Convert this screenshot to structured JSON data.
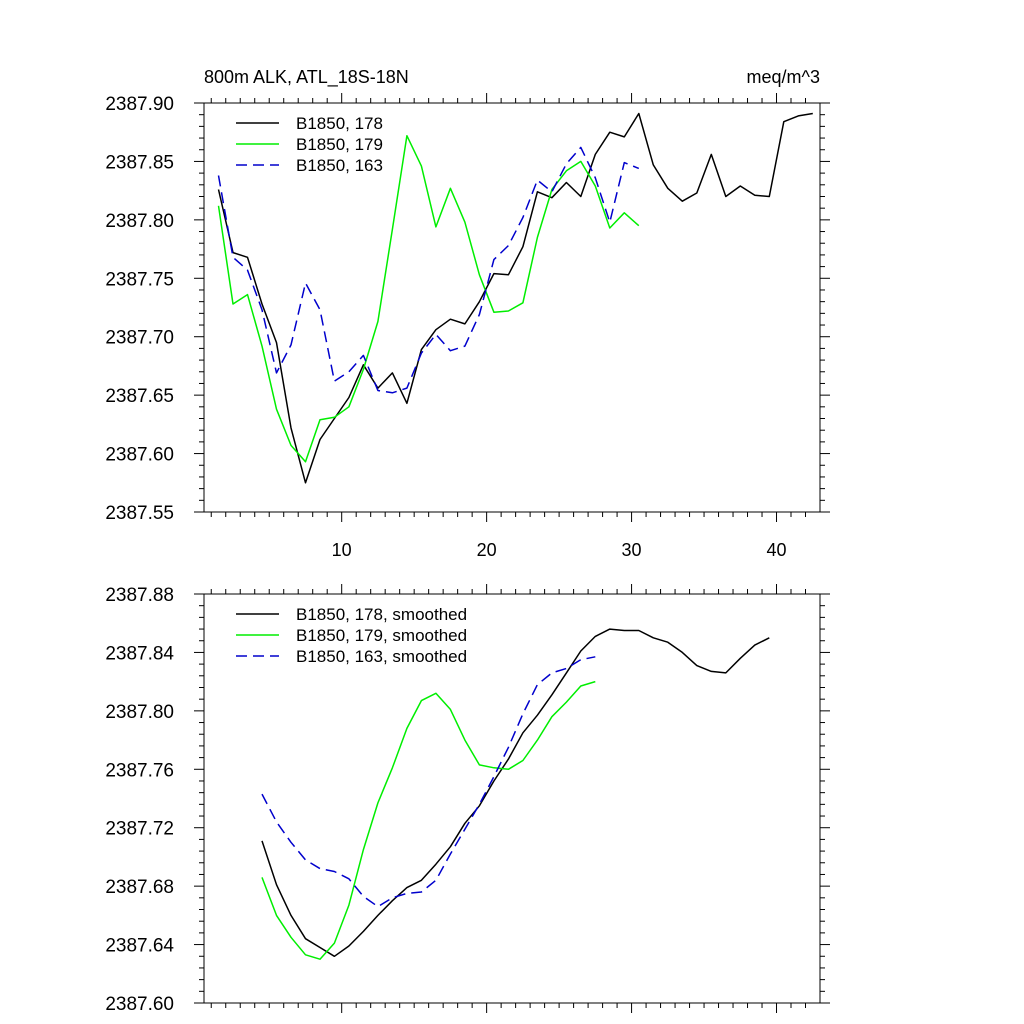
{
  "figure": {
    "title_left": "800m ALK, ATL_18S-18N",
    "title_right": "meq/m^3"
  },
  "chart_data": [
    {
      "type": "line",
      "title": "800m ALK, ATL_18S-18N",
      "units": "meq/m^3",
      "xlim": [
        0.5,
        43.0
      ],
      "ylim": [
        2387.55,
        2387.9
      ],
      "x_ticks": [
        10,
        20,
        30,
        40
      ],
      "x_tick_labels": [
        "10",
        "20",
        "30",
        "40"
      ],
      "y_ticks": [
        2387.55,
        2387.6,
        2387.65,
        2387.7,
        2387.75,
        2387.8,
        2387.85,
        2387.9
      ],
      "y_tick_labels": [
        "2387.55",
        "2387.60",
        "2387.65",
        "2387.70",
        "2387.75",
        "2387.80",
        "2387.85",
        "2387.90"
      ],
      "legend": "top-left",
      "series": [
        {
          "name": "B1850, 178",
          "color": "#000000",
          "dash": "solid",
          "x": [
            1.5,
            2.5,
            3.5,
            4.5,
            5.5,
            6.5,
            7.5,
            8.5,
            9.5,
            10.5,
            11.5,
            12.5,
            13.5,
            14.5,
            15.5,
            16.5,
            17.5,
            18.5,
            19.5,
            20.5,
            21.5,
            22.5,
            23.5,
            24.5,
            25.5,
            26.5,
            27.5,
            28.5,
            29.5,
            30.5,
            31.5,
            32.5,
            33.5,
            34.5,
            35.5,
            36.5,
            37.5,
            38.5,
            39.5,
            40.5,
            41.5,
            42.5
          ],
          "values": [
            2387.826,
            2387.772,
            2387.768,
            2387.728,
            2387.695,
            2387.622,
            2387.575,
            2387.612,
            2387.63,
            2387.648,
            2387.676,
            2387.656,
            2387.669,
            2387.643,
            2387.689,
            2387.706,
            2387.715,
            2387.711,
            2387.73,
            2387.754,
            2387.753,
            2387.777,
            2387.824,
            2387.819,
            2387.832,
            2387.82,
            2387.856,
            2387.875,
            2387.871,
            2387.891,
            2387.847,
            2387.827,
            2387.816,
            2387.823,
            2387.856,
            2387.82,
            2387.829,
            2387.821,
            2387.82,
            2387.884,
            2387.889,
            2387.891
          ]
        },
        {
          "name": "B1850, 179",
          "color": "#00ee00",
          "dash": "solid",
          "x": [
            1.5,
            2.5,
            3.5,
            4.5,
            5.5,
            6.5,
            7.5,
            8.5,
            9.5,
            10.5,
            11.5,
            12.5,
            13.5,
            14.5,
            15.5,
            16.5,
            17.5,
            18.5,
            19.5,
            20.5,
            21.5,
            22.5,
            23.5,
            24.5,
            25.5,
            26.5,
            27.5,
            28.5,
            29.5,
            30.5
          ],
          "values": [
            2387.812,
            2387.728,
            2387.736,
            2387.692,
            2387.638,
            2387.607,
            2387.593,
            2387.629,
            2387.631,
            2387.64,
            2387.672,
            2387.713,
            2387.792,
            2387.872,
            2387.846,
            2387.794,
            2387.827,
            2387.798,
            2387.753,
            2387.721,
            2387.722,
            2387.729,
            2387.785,
            2387.826,
            2387.842,
            2387.85,
            2387.829,
            2387.793,
            2387.806,
            2387.795
          ]
        },
        {
          "name": "B1850, 163",
          "color": "#0000cc",
          "dash": "dashed",
          "x": [
            1.5,
            2.5,
            3.5,
            4.5,
            5.5,
            6.5,
            7.5,
            8.5,
            9.5,
            10.5,
            11.5,
            12.5,
            13.5,
            14.5,
            15.5,
            16.5,
            17.5,
            18.5,
            19.5,
            20.5,
            21.5,
            22.5,
            23.5,
            24.5,
            25.5,
            26.5,
            27.5,
            28.5,
            29.5,
            30.5
          ],
          "values": [
            2387.838,
            2387.768,
            2387.757,
            2387.723,
            2387.669,
            2387.693,
            2387.746,
            2387.723,
            2387.662,
            2387.67,
            2387.684,
            2387.654,
            2387.652,
            2387.656,
            2387.686,
            2387.702,
            2387.688,
            2387.692,
            2387.719,
            2387.766,
            2387.778,
            2387.802,
            2387.834,
            2387.824,
            2387.848,
            2387.862,
            2387.836,
            2387.798,
            2387.849,
            2387.844
          ]
        }
      ]
    },
    {
      "type": "line",
      "xlim": [
        0.5,
        43.0
      ],
      "ylim": [
        2387.6,
        2387.88
      ],
      "x_ticks": [
        10,
        20,
        30,
        40
      ],
      "y_ticks": [
        2387.6,
        2387.64,
        2387.68,
        2387.72,
        2387.76,
        2387.8,
        2387.84,
        2387.88
      ],
      "y_tick_labels": [
        "2387.60",
        "2387.64",
        "2387.68",
        "2387.72",
        "2387.76",
        "2387.80",
        "2387.84",
        "2387.88"
      ],
      "legend": "top-left",
      "series": [
        {
          "name": "B1850, 178, smoothed",
          "color": "#000000",
          "dash": "solid",
          "x": [
            4.5,
            5.5,
            6.5,
            7.5,
            8.5,
            9.5,
            10.5,
            11.5,
            12.5,
            13.5,
            14.5,
            15.5,
            16.5,
            17.5,
            18.5,
            19.5,
            20.5,
            21.5,
            22.5,
            23.5,
            24.5,
            25.5,
            26.5,
            27.5,
            28.5,
            29.5,
            30.5,
            31.5,
            32.5,
            33.5,
            34.5,
            35.5,
            36.5,
            37.5,
            38.5,
            39.5
          ],
          "values": [
            2387.711,
            2387.681,
            2387.66,
            2387.644,
            2387.638,
            2387.632,
            2387.639,
            2387.649,
            2387.66,
            2387.67,
            2387.679,
            2387.684,
            2387.695,
            2387.707,
            2387.723,
            2387.735,
            2387.752,
            2387.767,
            2387.785,
            2387.797,
            2387.811,
            2387.826,
            2387.841,
            2387.851,
            2387.856,
            2387.855,
            2387.855,
            2387.85,
            2387.847,
            2387.84,
            2387.831,
            2387.827,
            2387.826,
            2387.836,
            2387.845,
            2387.85
          ]
        },
        {
          "name": "B1850, 179, smoothed",
          "color": "#00ee00",
          "dash": "solid",
          "x": [
            4.5,
            5.5,
            6.5,
            7.5,
            8.5,
            9.5,
            10.5,
            11.5,
            12.5,
            13.5,
            14.5,
            15.5,
            16.5,
            17.5,
            18.5,
            19.5,
            20.5,
            21.5,
            22.5,
            23.5,
            24.5,
            25.5,
            26.5,
            27.5
          ],
          "values": [
            2387.686,
            2387.66,
            2387.645,
            2387.633,
            2387.63,
            2387.641,
            2387.667,
            2387.705,
            2387.737,
            2387.761,
            2387.788,
            2387.807,
            2387.812,
            2387.801,
            2387.78,
            2387.763,
            2387.761,
            2387.76,
            2387.766,
            2387.78,
            2387.796,
            2387.806,
            2387.817,
            2387.82
          ]
        },
        {
          "name": "B1850, 163, smoothed",
          "color": "#0000cc",
          "dash": "dashed",
          "x": [
            4.5,
            5.5,
            6.5,
            7.5,
            8.5,
            9.5,
            10.5,
            11.5,
            12.5,
            13.5,
            14.5,
            15.5,
            16.5,
            17.5,
            18.5,
            19.5,
            20.5,
            21.5,
            22.5,
            23.5,
            24.5,
            25.5,
            26.5,
            27.5
          ],
          "values": [
            2387.743,
            2387.724,
            2387.71,
            2387.698,
            2387.692,
            2387.69,
            2387.685,
            2387.673,
            2387.666,
            2387.672,
            2387.675,
            2387.676,
            2387.684,
            2387.702,
            2387.719,
            2387.736,
            2387.755,
            2387.775,
            2387.798,
            2387.818,
            2387.826,
            2387.829,
            2387.835,
            2387.837
          ]
        }
      ]
    }
  ]
}
